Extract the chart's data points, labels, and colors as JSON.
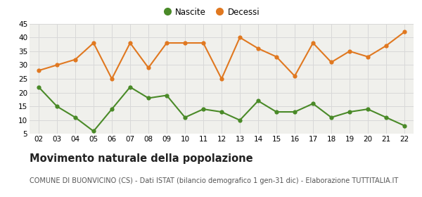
{
  "years": [
    "02",
    "03",
    "04",
    "05",
    "06",
    "07",
    "08",
    "09",
    "10",
    "11",
    "12",
    "13",
    "14",
    "15",
    "16",
    "17",
    "18",
    "19",
    "20",
    "21",
    "22"
  ],
  "nascite": [
    22,
    15,
    11,
    6,
    14,
    22,
    18,
    19,
    11,
    14,
    13,
    10,
    17,
    13,
    13,
    16,
    11,
    13,
    14,
    11,
    8
  ],
  "decessi": [
    28,
    30,
    32,
    38,
    25,
    38,
    29,
    38,
    38,
    38,
    25,
    40,
    36,
    33,
    26,
    38,
    31,
    35,
    33,
    37,
    42
  ],
  "nascite_color": "#4a8a28",
  "decessi_color": "#e07820",
  "background_color": "#ffffff",
  "plot_bg_color": "#f0f0ec",
  "grid_color": "#d8d8d8",
  "title": "Movimento naturale della popolazione",
  "subtitle": "COMUNE DI BUONVICINO (CS) - Dati ISTAT (bilancio demografico 1 gen-31 dic) - Elaborazione TUTTITALIA.IT",
  "legend_nascite": "Nascite",
  "legend_decessi": "Decessi",
  "ylim_min": 5,
  "ylim_max": 45,
  "yticks": [
    5,
    10,
    15,
    20,
    25,
    30,
    35,
    40,
    45
  ],
  "marker_size": 4.5,
  "line_width": 1.5,
  "title_fontsize": 10.5,
  "subtitle_fontsize": 7.0,
  "legend_fontsize": 8.5,
  "tick_fontsize": 7.5
}
